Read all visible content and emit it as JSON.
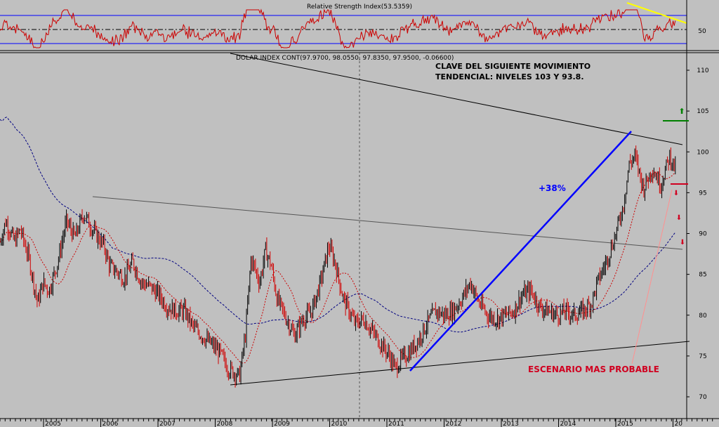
{
  "colors": {
    "background": "#c0c0c0",
    "price": "#000000",
    "price_down": "#d00000",
    "rsi_line": "#cc0000",
    "rsi_band": "#0000ff",
    "ma_short": "#cc0000",
    "ma_long": "#000080",
    "trendline": "#000000",
    "up_trend": "#0000ff",
    "rsi_trend": "#ffff00",
    "annotation_red": "#d00020",
    "target_green": "#008000",
    "pink_arrow": "#ff9090"
  },
  "rsi_panel": {
    "title": "Relative Strength Index(53.5359)",
    "axis_tick": "50",
    "ylim": [
      0,
      100
    ],
    "upper_band": 70,
    "lower_band": 30,
    "mid_line": 50
  },
  "price_panel": {
    "header": "DOLAR INDEX CONT(97.9700, 98.0550, 97.8350, 97.9500, -0.06600)",
    "annotation_title_line1": "CLAVE DEL SIGUIENTE MOVIMIENTO",
    "annotation_title_line2": "TENDENCIAL: NIVELES 103 Y 93.8.",
    "gain_label": "+38%",
    "scenario_label": "ESCENARIO MAS PROBABLE",
    "y_ticks": [
      "110",
      "105",
      "100",
      "95",
      "90",
      "85",
      "80",
      "75",
      "70"
    ]
  },
  "x_axis": {
    "labels": [
      "2005",
      "2006",
      "2007",
      "2008",
      "2009",
      "2010",
      "2011",
      "2012",
      "2013",
      "2014",
      "2015",
      "20"
    ]
  },
  "chart_data": {
    "type": "line",
    "title": "DOLAR INDEX CONT",
    "ylim": [
      69,
      112
    ],
    "x_range": [
      2004.2,
      2016.0
    ],
    "grid": false,
    "last_bar": {
      "open": 97.97,
      "high": 98.055,
      "low": 97.835,
      "close": 97.95,
      "change": -0.066
    },
    "series": [
      {
        "x": [
          2004.2,
          2004.3,
          2004.45,
          2004.55,
          2004.7,
          2004.85,
          2004.95,
          2005.05,
          2005.2,
          2005.35,
          2005.5,
          2005.65,
          2005.8,
          2005.9,
          2006.0,
          2006.1,
          2006.2,
          2006.35,
          2006.5,
          2006.65,
          2006.8,
          2006.95,
          2007.1,
          2007.25,
          2007.4,
          2007.55,
          2007.7,
          2007.85,
          2008.0,
          2008.15,
          2008.25,
          2008.35,
          2008.45,
          2008.55,
          2008.7,
          2008.8,
          2008.9,
          2009.0,
          2009.1,
          2009.2,
          2009.3,
          2009.45,
          2009.6,
          2009.75,
          2009.9,
          2010.0,
          2010.15,
          2010.25,
          2010.35,
          2010.5,
          2010.65,
          2010.8,
          2010.95,
          2011.05,
          2011.15,
          2011.3,
          2011.45,
          2011.6,
          2011.75,
          2011.9,
          2012.05,
          2012.2,
          2012.35,
          2012.5,
          2012.65,
          2012.8,
          2012.95,
          2013.1,
          2013.25,
          2013.4,
          2013.55,
          2013.7,
          2013.85,
          2014.0,
          2014.15,
          2014.3,
          2014.45,
          2014.55,
          2014.7,
          2014.85,
          2015.0,
          2015.1,
          2015.2,
          2015.35,
          2015.5,
          2015.65,
          2015.8,
          2015.9
        ],
        "values": [
          89.0,
          91.5,
          89.0,
          90.5,
          87.0,
          81.5,
          84.0,
          83.0,
          86.5,
          91.5,
          89.5,
          92.5,
          90.5,
          89.5,
          88.5,
          86.0,
          85.5,
          84.5,
          86.5,
          84.0,
          83.5,
          82.5,
          81.0,
          80.5,
          80.5,
          78.5,
          77.5,
          76.5,
          75.5,
          73.5,
          73.0,
          72.5,
          77.5,
          87.0,
          84.0,
          88.0,
          86.0,
          82.0,
          80.5,
          79.0,
          77.5,
          79.5,
          80.5,
          84.0,
          88.5,
          86.5,
          82.0,
          80.5,
          79.0,
          79.5,
          78.0,
          76.5,
          75.0,
          73.5,
          74.5,
          75.5,
          77.0,
          79.0,
          80.5,
          80.0,
          80.5,
          82.0,
          84.0,
          81.5,
          80.0,
          79.5,
          80.0,
          80.5,
          82.5,
          83.0,
          81.0,
          80.5,
          80.0,
          80.5,
          80.0,
          80.5,
          81.5,
          84.0,
          86.5,
          89.5,
          93.5,
          98.5,
          99.5,
          95.5,
          98.0,
          96.0,
          99.5,
          97.95
        ]
      }
    ]
  }
}
